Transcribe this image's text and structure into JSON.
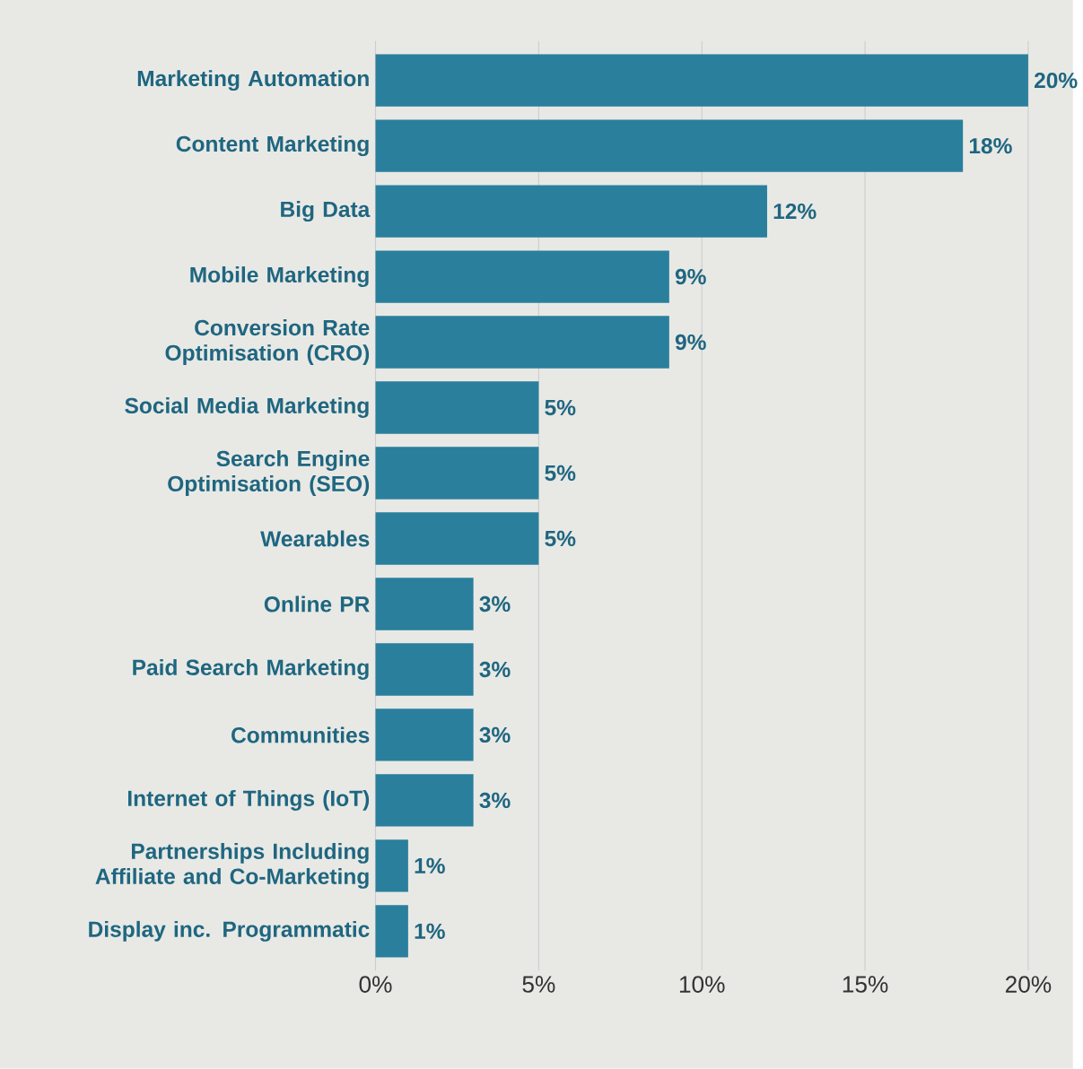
{
  "chart_data": {
    "type": "bar",
    "orientation": "horizontal",
    "categories": [
      "Marketing Automation",
      "Content Marketing",
      "Big Data",
      "Mobile Marketing",
      "Conversion Rate Optimisation (CRO)",
      "Social Media Marketing",
      "Search Engine Optimisation (SEO)",
      "Wearables",
      "Online PR",
      "Paid Search Marketing",
      "Communities",
      "Internet of Things (IoT)",
      "Partnerships Including Affiliate and Co-Marketing",
      "Display inc. Programmatic"
    ],
    "values": [
      20,
      18,
      12,
      9,
      9,
      5,
      5,
      5,
      3,
      3,
      3,
      3,
      1,
      1
    ],
    "value_labels": [
      "20%",
      "18%",
      "12%",
      "9%",
      "9%",
      "5%",
      "5%",
      "5%",
      "3%",
      "3%",
      "3%",
      "3%",
      "1%",
      "1%"
    ],
    "color": "#2a7f9c",
    "xlim": [
      0,
      20
    ],
    "xticks": [
      {
        "value": 0,
        "label": "0%"
      },
      {
        "value": 5,
        "label": "5%"
      },
      {
        "value": 10,
        "label": "10%"
      },
      {
        "value": 15,
        "label": "15%"
      },
      {
        "value": 20,
        "label": "20%"
      }
    ],
    "grid": "x"
  }
}
